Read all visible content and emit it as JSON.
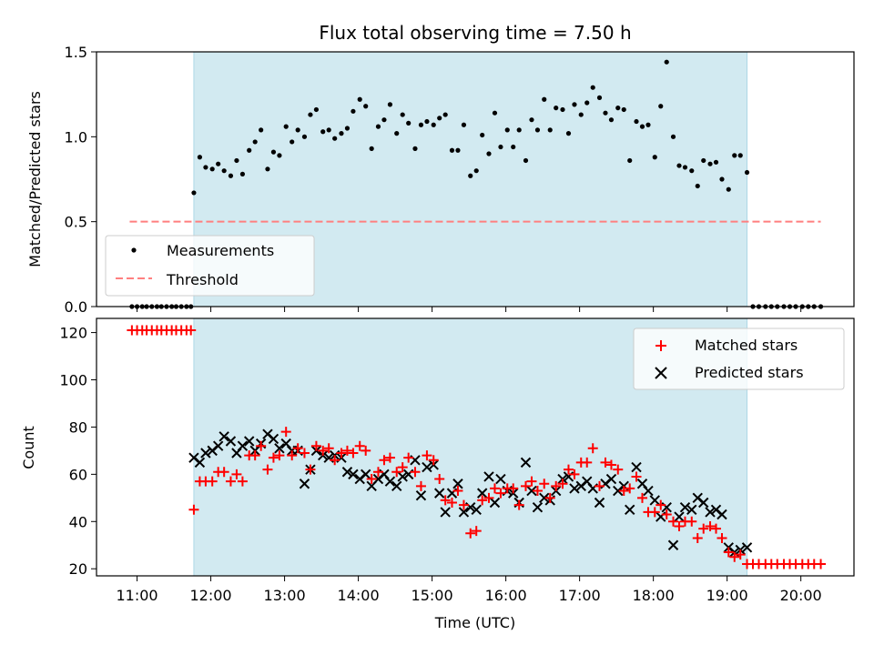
{
  "figure": {
    "title": "Flux total observing time = 7.50 h"
  },
  "colors": {
    "shade": "#add8e6",
    "threshold": "#ff7f7f",
    "matched": "#ff0000",
    "predicted": "#000000",
    "measurement": "#000000"
  },
  "chart_data": [
    {
      "type": "scatter",
      "ylabel": "Matched/Predicted stars",
      "xlabel": "",
      "xlim": [
        10.45,
        20.72
      ],
      "ylim": [
        0,
        1.5
      ],
      "yticks": [
        0.0,
        0.5,
        1.0,
        1.5
      ],
      "ytick_labels": [
        "0.0",
        "0.5",
        "1.0",
        "1.5"
      ],
      "shaded_span": [
        11.77,
        19.27
      ],
      "threshold": {
        "name": "Threshold",
        "y": 0.5,
        "x": [
          10.9,
          20.27
        ]
      },
      "legend": {
        "position": "lower-left",
        "entries": [
          "Measurements",
          "Threshold"
        ]
      },
      "series": [
        {
          "name": "Measurements",
          "x": [
            10.93,
            11.0,
            11.07,
            11.13,
            11.2,
            11.27,
            11.33,
            11.4,
            11.47,
            11.53,
            11.6,
            11.67,
            11.73,
            11.77,
            11.85,
            11.93,
            12.02,
            12.1,
            12.18,
            12.27,
            12.35,
            12.43,
            12.52,
            12.6,
            12.68,
            12.77,
            12.85,
            12.93,
            13.02,
            13.1,
            13.18,
            13.27,
            13.35,
            13.43,
            13.52,
            13.6,
            13.68,
            13.77,
            13.85,
            13.93,
            14.02,
            14.1,
            14.18,
            14.27,
            14.35,
            14.43,
            14.52,
            14.6,
            14.68,
            14.77,
            14.85,
            14.93,
            15.02,
            15.1,
            15.18,
            15.27,
            15.35,
            15.43,
            15.52,
            15.6,
            15.68,
            15.77,
            15.85,
            15.93,
            16.02,
            16.1,
            16.18,
            16.27,
            16.35,
            16.43,
            16.52,
            16.6,
            16.68,
            16.77,
            16.85,
            16.93,
            17.02,
            17.1,
            17.18,
            17.27,
            17.35,
            17.43,
            17.52,
            17.6,
            17.68,
            17.77,
            17.85,
            17.93,
            18.02,
            18.1,
            18.18,
            18.27,
            18.35,
            18.43,
            18.52,
            18.6,
            18.68,
            18.77,
            18.85,
            18.93,
            19.02,
            19.1,
            19.18,
            19.27,
            19.35,
            19.43,
            19.52,
            19.6,
            19.68,
            19.77,
            19.85,
            19.93,
            20.02,
            20.1,
            20.18,
            20.27
          ],
          "y": [
            0,
            0,
            0,
            0,
            0,
            0,
            0,
            0,
            0,
            0,
            0,
            0,
            0,
            0.67,
            0.88,
            0.82,
            0.81,
            0.84,
            0.8,
            0.77,
            0.86,
            0.78,
            0.92,
            0.97,
            1.04,
            0.81,
            0.91,
            0.89,
            1.06,
            0.97,
            1.04,
            1.0,
            1.13,
            1.16,
            1.03,
            1.04,
            0.99,
            1.02,
            1.05,
            1.15,
            1.22,
            1.18,
            0.93,
            1.06,
            1.1,
            1.19,
            1.02,
            1.13,
            1.08,
            0.93,
            1.07,
            1.09,
            1.07,
            1.11,
            1.13,
            0.92,
            0.92,
            1.07,
            0.77,
            0.8,
            1.01,
            0.9,
            1.14,
            0.94,
            1.04,
            0.94,
            1.04,
            0.86,
            1.1,
            1.04,
            1.22,
            1.04,
            1.17,
            1.16,
            1.02,
            1.19,
            1.13,
            1.2,
            1.29,
            1.23,
            1.14,
            1.1,
            1.17,
            1.16,
            0.86,
            1.09,
            1.06,
            1.07,
            0.88,
            1.18,
            1.44,
            1.0,
            0.83,
            0.82,
            0.8,
            0.71,
            0.86,
            0.84,
            0.85,
            0.75,
            0.69,
            0.89,
            0.89,
            0.79,
            0,
            0,
            0,
            0,
            0,
            0,
            0,
            0,
            0,
            0,
            0,
            0
          ]
        }
      ]
    },
    {
      "type": "scatter",
      "ylabel": "Count",
      "xlabel": "Time (UTC)",
      "xlim": [
        10.45,
        20.72
      ],
      "ylim": [
        17,
        126
      ],
      "yticks": [
        20,
        40,
        60,
        80,
        100,
        120
      ],
      "ytick_labels": [
        "20",
        "40",
        "60",
        "80",
        "100",
        "120"
      ],
      "xticks": [
        11,
        12,
        13,
        14,
        15,
        16,
        17,
        18,
        19,
        20
      ],
      "xtick_labels": [
        "11:00",
        "12:00",
        "13:00",
        "14:00",
        "15:00",
        "16:00",
        "17:00",
        "18:00",
        "19:00",
        "20:00"
      ],
      "shaded_span": [
        11.77,
        19.27
      ],
      "legend": {
        "position": "top-right",
        "entries": [
          "Matched stars",
          "Predicted stars"
        ]
      },
      "series": [
        {
          "name": "Matched stars",
          "x": [
            10.93,
            11.0,
            11.07,
            11.13,
            11.2,
            11.27,
            11.33,
            11.4,
            11.47,
            11.53,
            11.6,
            11.67,
            11.73,
            11.77,
            11.85,
            11.93,
            12.02,
            12.1,
            12.18,
            12.27,
            12.35,
            12.43,
            12.52,
            12.6,
            12.68,
            12.77,
            12.85,
            12.93,
            13.02,
            13.1,
            13.18,
            13.27,
            13.35,
            13.43,
            13.52,
            13.6,
            13.68,
            13.77,
            13.85,
            13.93,
            14.02,
            14.1,
            14.18,
            14.27,
            14.35,
            14.43,
            14.52,
            14.6,
            14.68,
            14.77,
            14.85,
            14.93,
            15.02,
            15.1,
            15.18,
            15.27,
            15.35,
            15.43,
            15.52,
            15.6,
            15.68,
            15.77,
            15.85,
            15.93,
            16.02,
            16.1,
            16.18,
            16.27,
            16.35,
            16.43,
            16.52,
            16.6,
            16.68,
            16.77,
            16.85,
            16.93,
            17.02,
            17.1,
            17.18,
            17.27,
            17.35,
            17.43,
            17.52,
            17.6,
            17.68,
            17.77,
            17.85,
            17.93,
            18.02,
            18.1,
            18.18,
            18.27,
            18.35,
            18.43,
            18.52,
            18.6,
            18.68,
            18.77,
            18.85,
            18.93,
            19.02,
            19.1,
            19.18,
            19.27,
            19.35,
            19.43,
            19.52,
            19.6,
            19.68,
            19.77,
            19.85,
            19.93,
            20.02,
            20.1,
            20.18,
            20.27
          ],
          "y": [
            121,
            121,
            121,
            121,
            121,
            121,
            121,
            121,
            121,
            121,
            121,
            121,
            121,
            45,
            57,
            57,
            57,
            61,
            61,
            57,
            60,
            57,
            68,
            68,
            72,
            62,
            67,
            68,
            78,
            68,
            71,
            69,
            62,
            72,
            70,
            71,
            66,
            69,
            70,
            69,
            72,
            70,
            58,
            61,
            66,
            67,
            61,
            63,
            67,
            61,
            55,
            68,
            66,
            58,
            49,
            48,
            53,
            47,
            35,
            36,
            49,
            50,
            54,
            52,
            54,
            54,
            47,
            55,
            57,
            53,
            56,
            50,
            55,
            56,
            62,
            60,
            65,
            65,
            71,
            55,
            65,
            64,
            62,
            53,
            54,
            59,
            50,
            44,
            44,
            47,
            43,
            40,
            38,
            40,
            40,
            33,
            37,
            38,
            37,
            33,
            27,
            25,
            26,
            22,
            22,
            22,
            22,
            22,
            22,
            22,
            22,
            22,
            22,
            22,
            22,
            22
          ]
        },
        {
          "name": "Predicted stars",
          "x": [
            11.77,
            11.85,
            11.93,
            12.02,
            12.1,
            12.18,
            12.27,
            12.35,
            12.43,
            12.52,
            12.6,
            12.68,
            12.77,
            12.85,
            12.93,
            13.02,
            13.1,
            13.18,
            13.27,
            13.35,
            13.43,
            13.52,
            13.6,
            13.68,
            13.77,
            13.85,
            13.93,
            14.02,
            14.1,
            14.18,
            14.27,
            14.35,
            14.43,
            14.52,
            14.6,
            14.68,
            14.77,
            14.85,
            14.93,
            15.02,
            15.1,
            15.18,
            15.27,
            15.35,
            15.43,
            15.52,
            15.6,
            15.68,
            15.77,
            15.85,
            15.93,
            16.02,
            16.1,
            16.18,
            16.27,
            16.35,
            16.43,
            16.52,
            16.6,
            16.68,
            16.77,
            16.85,
            16.93,
            17.02,
            17.1,
            17.18,
            17.27,
            17.35,
            17.43,
            17.52,
            17.6,
            17.68,
            17.77,
            17.85,
            17.93,
            18.02,
            18.1,
            18.18,
            18.27,
            18.35,
            18.43,
            18.52,
            18.6,
            18.68,
            18.77,
            18.85,
            18.93,
            19.02,
            19.1,
            19.18,
            19.27
          ],
          "y": [
            67,
            65,
            69,
            70,
            72,
            76,
            74,
            69,
            72,
            74,
            70,
            73,
            77,
            75,
            71,
            73,
            70,
            70,
            56,
            62,
            70,
            68,
            67,
            68,
            67,
            61,
            60,
            58,
            60,
            55,
            58,
            60,
            57,
            55,
            59,
            60,
            66,
            51,
            63,
            64,
            52,
            44,
            52,
            56,
            44,
            46,
            45,
            52,
            59,
            48,
            58,
            53,
            52,
            48,
            65,
            53,
            46,
            50,
            49,
            53,
            58,
            59,
            54,
            55,
            57,
            54,
            48,
            56,
            58,
            53,
            55,
            45,
            63,
            56,
            53,
            49,
            42,
            46,
            30,
            42,
            46,
            45,
            50,
            48,
            44,
            45,
            43,
            29,
            27,
            28,
            29
          ]
        }
      ]
    }
  ]
}
